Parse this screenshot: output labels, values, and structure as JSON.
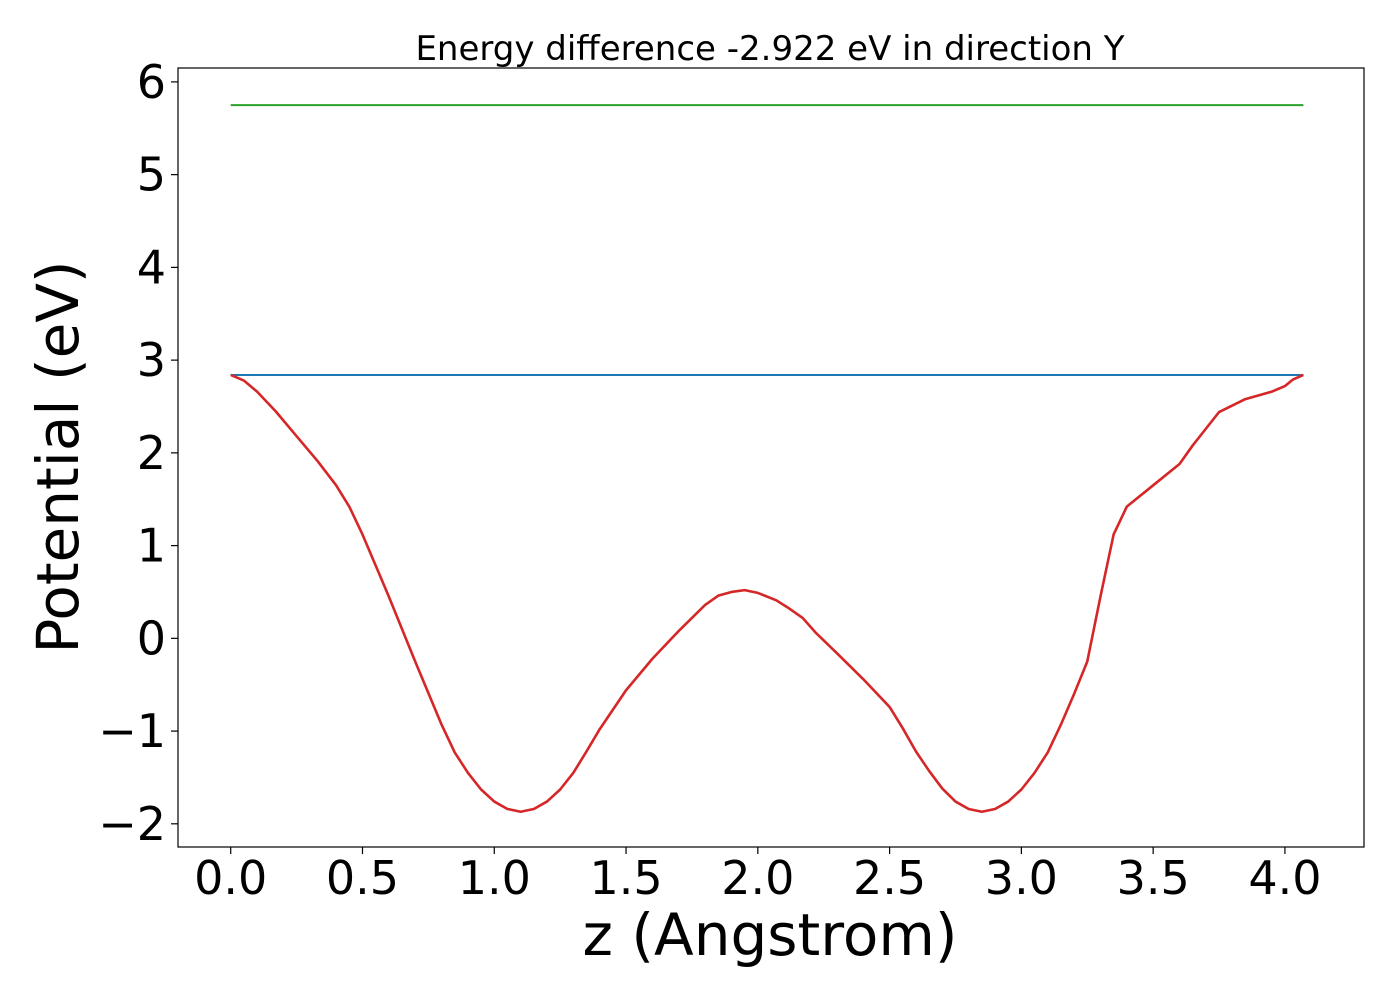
{
  "chart_data": {
    "type": "line",
    "title": "Energy difference -2.922 eV in direction Y",
    "xlabel": "z (Angstrom)",
    "ylabel": "Potential (eV)",
    "xlim": [
      -0.2,
      4.3
    ],
    "ylim": [
      -2.25,
      6.15
    ],
    "xticks": [
      0.0,
      0.5,
      1.0,
      1.5,
      2.0,
      2.5,
      3.0,
      3.5,
      4.0
    ],
    "xtick_labels": [
      "0.0",
      "0.5",
      "1.0",
      "1.5",
      "2.0",
      "2.5",
      "3.0",
      "3.5",
      "4.0"
    ],
    "yticks": [
      -2,
      -1,
      0,
      1,
      2,
      3,
      4,
      5,
      6
    ],
    "ytick_labels": [
      "−2",
      "−1",
      "0",
      "1",
      "2",
      "3",
      "4",
      "5",
      "6"
    ],
    "grid": false,
    "legend": "none",
    "series": [
      {
        "color": "#2ca02c",
        "x": [
          0.0,
          4.07
        ],
        "y": [
          5.75,
          5.75
        ]
      },
      {
        "color": "#1f77b4",
        "x": [
          0.0,
          4.07
        ],
        "y": [
          2.84,
          2.84
        ]
      },
      {
        "color": "#d62728",
        "x": [
          0.0,
          0.05,
          0.1,
          0.17,
          0.25,
          0.33,
          0.4,
          0.45,
          0.5,
          0.6,
          0.7,
          0.8,
          0.85,
          0.9,
          0.95,
          1.0,
          1.05,
          1.1,
          1.15,
          1.2,
          1.25,
          1.3,
          1.35,
          1.4,
          1.5,
          1.6,
          1.7,
          1.8,
          1.85,
          1.9,
          1.95,
          2.0,
          2.07,
          2.12,
          2.17,
          2.22,
          2.3,
          2.4,
          2.5,
          2.55,
          2.6,
          2.65,
          2.7,
          2.75,
          2.8,
          2.85,
          2.9,
          2.95,
          3.0,
          3.05,
          3.1,
          3.15,
          3.2,
          3.25,
          3.3,
          3.35,
          3.4,
          3.5,
          3.6,
          3.65,
          3.7,
          3.75,
          3.85,
          3.95,
          4.0,
          4.03,
          4.07
        ],
        "y": [
          2.84,
          2.78,
          2.66,
          2.45,
          2.18,
          1.91,
          1.65,
          1.42,
          1.12,
          0.45,
          -0.25,
          -0.93,
          -1.23,
          -1.45,
          -1.63,
          -1.76,
          -1.84,
          -1.87,
          -1.84,
          -1.76,
          -1.63,
          -1.45,
          -1.22,
          -0.98,
          -0.56,
          -0.22,
          0.08,
          0.36,
          0.46,
          0.5,
          0.52,
          0.49,
          0.41,
          0.32,
          0.22,
          0.06,
          -0.16,
          -0.44,
          -0.74,
          -0.97,
          -1.22,
          -1.43,
          -1.62,
          -1.76,
          -1.84,
          -1.87,
          -1.84,
          -1.76,
          -1.63,
          -1.45,
          -1.23,
          -0.93,
          -0.6,
          -0.25,
          0.45,
          1.12,
          1.42,
          1.65,
          1.88,
          2.08,
          2.26,
          2.44,
          2.58,
          2.66,
          2.72,
          2.79,
          2.84
        ]
      }
    ]
  }
}
